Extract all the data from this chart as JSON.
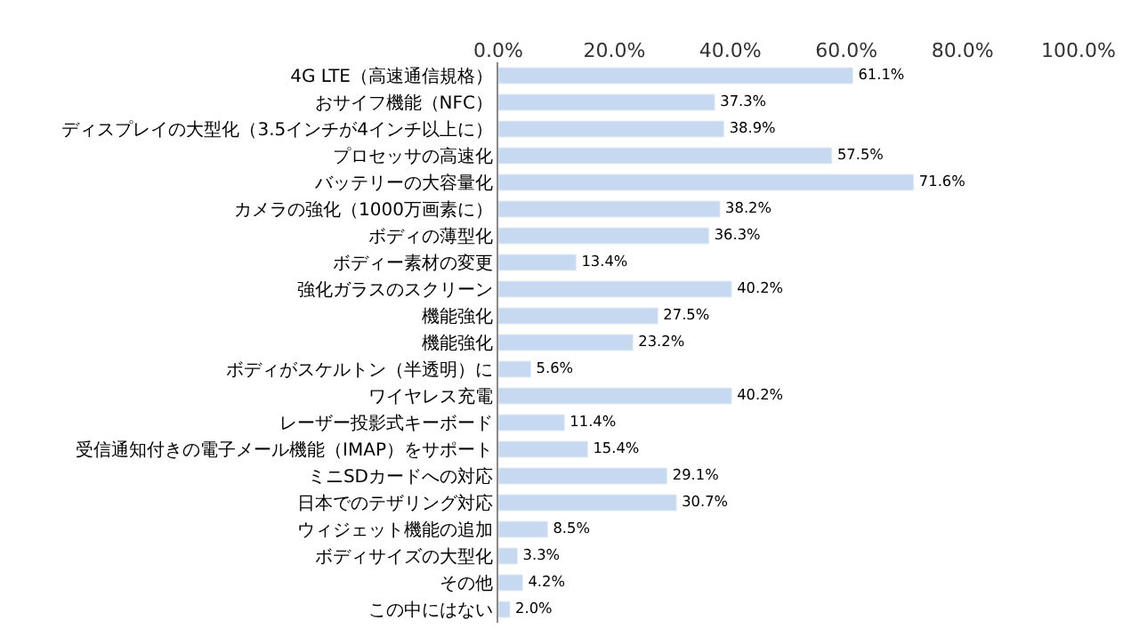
{
  "chart_data": {
    "type": "bar",
    "orientation": "horizontal",
    "categories": [
      "4G LTE（高速通信規格）",
      "おサイフ機能（NFC）",
      "ディスプレイの大型化（3.5インチが4インチ以上に）",
      "プロセッサの高速化",
      "バッテリーの大容量化",
      "カメラの強化（1000万画素に）",
      "ボディの薄型化",
      "ボディー素材の変更",
      "強化ガラスのスクリーン",
      "機能強化",
      "機能強化",
      "ボディがスケルトン（半透明）に",
      "ワイヤレス充電",
      "レーザー投影式キーボード",
      "受信通知付きの電子メール機能（IMAP）をサポート",
      "ミニSDカードへの対応",
      "日本でのテザリング対応",
      "ウィジェット機能の追加",
      "ボディサイズの大型化",
      "その他",
      "この中にはない"
    ],
    "values": [
      61.1,
      37.3,
      38.9,
      57.5,
      71.6,
      38.2,
      36.3,
      13.4,
      40.2,
      27.5,
      23.2,
      5.6,
      40.2,
      11.4,
      15.4,
      29.1,
      30.7,
      8.5,
      3.3,
      4.2,
      2.0
    ],
    "value_labels": [
      "61.1%",
      "37.3%",
      "38.9%",
      "57.5%",
      "71.6%",
      "38.2%",
      "36.3%",
      "13.4%",
      "40.2%",
      "27.5%",
      "23.2%",
      "5.6%",
      "40.2%",
      "11.4%",
      "15.4%",
      "29.1%",
      "30.7%",
      "8.5%",
      "3.3%",
      "4.2%",
      "2.0%"
    ],
    "color": "#c6d9f0",
    "xlim": [
      0,
      100
    ],
    "xticks": [
      {
        "value": 0,
        "label": "0.0%"
      },
      {
        "value": 20,
        "label": "20.0%"
      },
      {
        "value": 40,
        "label": "40.0%"
      },
      {
        "value": 60,
        "label": "60.0%"
      },
      {
        "value": 80,
        "label": "80.0%"
      },
      {
        "value": 100,
        "label": "100.0%"
      }
    ],
    "legend": false
  }
}
